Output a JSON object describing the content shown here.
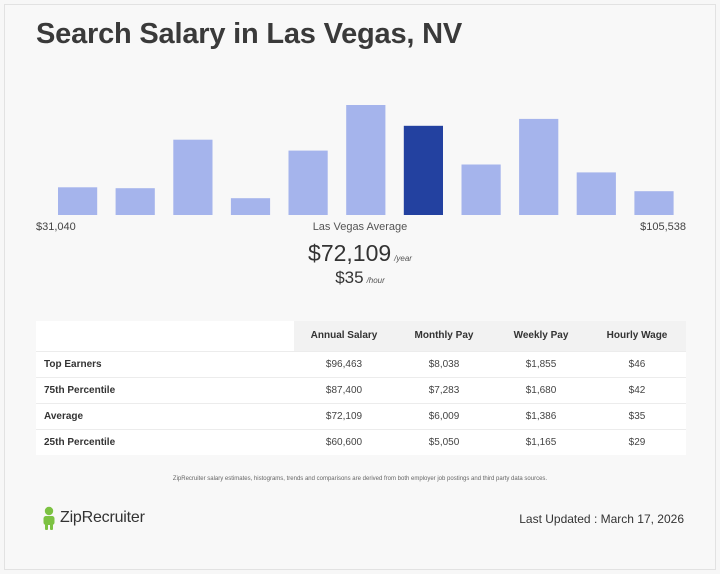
{
  "page": {
    "title": "Search Salary in Las Vegas, NV"
  },
  "colors": {
    "bar_default": "#a5b4ec",
    "bar_highlight": "#2341a0",
    "brand_green": "#7cc242"
  },
  "chart_data": {
    "type": "bar",
    "categories": [
      "1",
      "2",
      "3",
      "4",
      "5",
      "6",
      "7",
      "8",
      "9",
      "10",
      "11"
    ],
    "values": [
      28,
      27,
      76,
      17,
      65,
      111,
      90,
      51,
      97,
      43,
      24
    ],
    "highlight_index": 6,
    "title": "",
    "xlabel": "",
    "ylabel": "",
    "ylim": [
      0,
      111
    ],
    "grid": false,
    "min_label": "$31,040",
    "max_label": "$105,538",
    "average_label": "Las Vegas Average"
  },
  "summary": {
    "yearly_amount": "$72,109",
    "yearly_unit": "/year",
    "hourly_amount": "$35",
    "hourly_unit": "/hour"
  },
  "table": {
    "headers": [
      "",
      "Annual Salary",
      "Monthly Pay",
      "Weekly Pay",
      "Hourly Wage"
    ],
    "rows": [
      {
        "label": "Top Earners",
        "annual": "$96,463",
        "monthly": "$8,038",
        "weekly": "$1,855",
        "hourly": "$46"
      },
      {
        "label": "75th Percentile",
        "annual": "$87,400",
        "monthly": "$7,283",
        "weekly": "$1,680",
        "hourly": "$42"
      },
      {
        "label": "Average",
        "annual": "$72,109",
        "monthly": "$6,009",
        "weekly": "$1,386",
        "hourly": "$35"
      },
      {
        "label": "25th Percentile",
        "annual": "$60,600",
        "monthly": "$5,050",
        "weekly": "$1,165",
        "hourly": "$29"
      }
    ]
  },
  "footer": {
    "disclaimer": "ZipRecruiter salary estimates, histograms, trends and comparisons are derived from both employer job postings and third party data sources.",
    "brand_name": "ZipRecruiter",
    "brand_icon": "ziprecruiter-logo-icon",
    "last_updated": "Last Updated : March 17, 2026"
  }
}
